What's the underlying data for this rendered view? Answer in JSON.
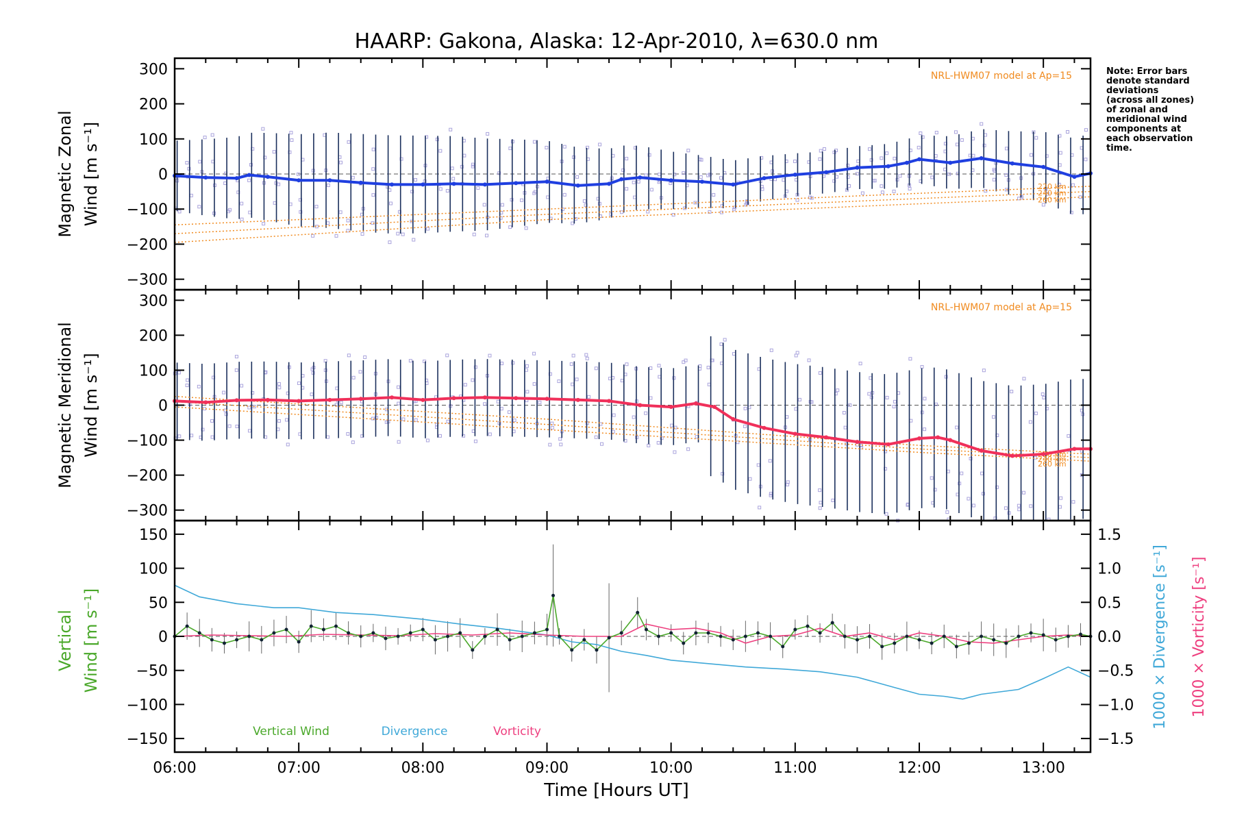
{
  "title": "HAARP: Gakona,  Alaska: 12-Apr-2010, λ=630.0 nm",
  "note": [
    "Note: Error bars",
    "denote standard",
    "deviations",
    "(across all zones)",
    "of zonal and",
    "meridional wind",
    "components at",
    "each observation",
    "time."
  ],
  "model_label": "NRL-HWM07 model at Ap=15",
  "model_altitudes": [
    "220 km",
    "240 km",
    "260 km"
  ],
  "colors": {
    "zonal": "#1f3fe0",
    "meridional": "#f0305a",
    "vertical": "#4aa82a",
    "divergence": "#3fa8d8",
    "vorticity": "#ee3f7f",
    "model": "#f08a1e",
    "scatter": "#a9a3dc",
    "errorbar": "#1a2f5c"
  },
  "chart_data": [
    {
      "type": "line",
      "panel": "zonal",
      "ylabel": [
        "Magnetic Zonal",
        "Wind [m s⁻¹]"
      ],
      "ylim": [
        -330,
        330
      ],
      "yticks": [
        "300",
        "200",
        "100",
        "0",
        "−100",
        "−200",
        "−300"
      ],
      "xlim": [
        6.0,
        13.38
      ],
      "series": [
        {
          "name": "Zonal wind",
          "x": [
            6.0,
            6.25,
            6.5,
            6.6,
            6.75,
            7.0,
            7.25,
            7.5,
            7.75,
            8.0,
            8.25,
            8.5,
            8.75,
            9.0,
            9.25,
            9.5,
            9.6,
            9.75,
            10.0,
            10.25,
            10.5,
            10.75,
            11.0,
            11.25,
            11.5,
            11.75,
            11.9,
            12.0,
            12.25,
            12.5,
            12.75,
            13.0,
            13.25,
            13.38
          ],
          "values": [
            -5,
            -10,
            -12,
            -3,
            -8,
            -18,
            -18,
            -25,
            -30,
            -30,
            -28,
            -30,
            -26,
            -22,
            -33,
            -28,
            -15,
            -10,
            -18,
            -22,
            -30,
            -12,
            -2,
            5,
            18,
            22,
            32,
            42,
            32,
            45,
            30,
            20,
            -8,
            2
          ]
        }
      ],
      "model_curves": [
        {
          "name": "220 km",
          "x": [
            6.0,
            9.0,
            12.0,
            13.38
          ],
          "values": [
            -145,
            -100,
            -55,
            -35
          ]
        },
        {
          "name": "240 km",
          "x": [
            6.0,
            9.0,
            12.0,
            13.38
          ],
          "values": [
            -170,
            -115,
            -70,
            -50
          ]
        },
        {
          "name": "260 km",
          "x": [
            6.0,
            9.0,
            12.0,
            13.38
          ],
          "values": [
            -195,
            -130,
            -85,
            -65
          ]
        }
      ]
    },
    {
      "type": "line",
      "panel": "meridional",
      "ylabel": [
        "Magnetic Meridional",
        "Wind [m s⁻¹]"
      ],
      "ylim": [
        -330,
        330
      ],
      "yticks": [
        "300",
        "200",
        "100",
        "0",
        "−100",
        "−200",
        "−300"
      ],
      "xlim": [
        6.0,
        13.38
      ],
      "series": [
        {
          "name": "Meridional wind",
          "x": [
            6.0,
            6.25,
            6.5,
            6.75,
            7.0,
            7.25,
            7.5,
            7.75,
            8.0,
            8.25,
            8.5,
            8.75,
            9.0,
            9.25,
            9.5,
            9.75,
            10.0,
            10.2,
            10.35,
            10.5,
            10.75,
            11.0,
            11.25,
            11.5,
            11.75,
            12.0,
            12.15,
            12.25,
            12.5,
            12.75,
            13.0,
            13.25,
            13.38
          ],
          "values": [
            12,
            8,
            14,
            15,
            12,
            15,
            18,
            22,
            15,
            20,
            22,
            20,
            18,
            15,
            12,
            0,
            -5,
            5,
            -5,
            -40,
            -65,
            -82,
            -92,
            -105,
            -112,
            -95,
            -92,
            -100,
            -130,
            -145,
            -140,
            -125,
            -125
          ]
        }
      ],
      "model_curves": [
        {
          "name": "220 km",
          "x": [
            6.0,
            9.0,
            12.0,
            13.38
          ],
          "values": [
            25,
            -40,
            -115,
            -140
          ]
        },
        {
          "name": "240 km",
          "x": [
            6.0,
            9.0,
            12.0,
            13.38
          ],
          "values": [
            10,
            -55,
            -125,
            -150
          ]
        },
        {
          "name": "260 km",
          "x": [
            6.0,
            9.0,
            12.0,
            13.38
          ],
          "values": [
            -5,
            -70,
            -135,
            -160
          ]
        }
      ]
    },
    {
      "type": "line",
      "panel": "vertical",
      "ylabel_left": [
        "Vertical",
        "Wind [m s⁻¹]"
      ],
      "ylabel_right_1": "1000 × Divergence [s⁻¹]",
      "ylabel_right_2": "1000 × Vorticity [s⁻¹]",
      "ylim": [
        -170,
        170
      ],
      "yticks": [
        "150",
        "100",
        "50",
        "0",
        "−50",
        "−100",
        "−150"
      ],
      "y2lim": [
        -1.7,
        1.7
      ],
      "y2ticks": [
        "1.5",
        "1.0",
        "0.5",
        "0.0",
        "−0.5",
        "−1.0",
        "−1.5"
      ],
      "xlabel": "Time [Hours UT]",
      "xticks": [
        "06:00",
        "07:00",
        "08:00",
        "09:00",
        "10:00",
        "11:00",
        "12:00",
        "13:00"
      ],
      "xlim": [
        6.0,
        13.38
      ],
      "legend": [
        "Vertical Wind",
        "Divergence",
        "Vorticity"
      ],
      "series": [
        {
          "name": "Vertical Wind",
          "x": [
            6.0,
            6.1,
            6.2,
            6.3,
            6.4,
            6.5,
            6.6,
            6.7,
            6.8,
            6.9,
            7.0,
            7.1,
            7.2,
            7.3,
            7.4,
            7.5,
            7.6,
            7.7,
            7.8,
            7.9,
            8.0,
            8.1,
            8.2,
            8.3,
            8.4,
            8.5,
            8.6,
            8.7,
            8.8,
            8.9,
            9.0,
            9.05,
            9.1,
            9.2,
            9.3,
            9.4,
            9.5,
            9.6,
            9.73,
            9.8,
            9.9,
            10.0,
            10.1,
            10.2,
            10.3,
            10.4,
            10.5,
            10.6,
            10.7,
            10.8,
            10.9,
            11.0,
            11.1,
            11.2,
            11.3,
            11.4,
            11.5,
            11.6,
            11.7,
            11.8,
            11.9,
            12.0,
            12.1,
            12.2,
            12.3,
            12.4,
            12.5,
            12.6,
            12.7,
            12.8,
            12.9,
            13.0,
            13.1,
            13.2,
            13.3,
            13.38
          ],
          "values": [
            0,
            15,
            5,
            -5,
            -10,
            -5,
            0,
            -5,
            5,
            10,
            -8,
            15,
            10,
            15,
            5,
            0,
            5,
            -3,
            0,
            5,
            10,
            -5,
            0,
            5,
            -20,
            0,
            10,
            -5,
            0,
            5,
            10,
            60,
            0,
            -20,
            -5,
            -20,
            -2,
            5,
            35,
            10,
            0,
            5,
            -10,
            5,
            5,
            0,
            -5,
            0,
            5,
            0,
            -15,
            10,
            15,
            5,
            20,
            0,
            -5,
            0,
            -15,
            -10,
            0,
            -5,
            -10,
            0,
            -15,
            -10,
            0,
            -5,
            -10,
            0,
            5,
            2,
            -5,
            0,
            3,
            0
          ]
        },
        {
          "name": "Divergence",
          "x": [
            6.0,
            6.2,
            6.5,
            6.8,
            7.0,
            7.3,
            7.6,
            8.0,
            8.3,
            8.6,
            9.0,
            9.2,
            9.4,
            9.6,
            9.8,
            10.0,
            10.3,
            10.6,
            10.9,
            11.2,
            11.5,
            11.8,
            12.0,
            12.2,
            12.35,
            12.5,
            12.8,
            13.0,
            13.2,
            13.38
          ],
          "values": [
            0.75,
            0.58,
            0.48,
            0.42,
            0.42,
            0.35,
            0.32,
            0.25,
            0.18,
            0.12,
            0.02,
            -0.08,
            -0.12,
            -0.22,
            -0.28,
            -0.35,
            -0.4,
            -0.45,
            -0.48,
            -0.52,
            -0.6,
            -0.75,
            -0.85,
            -0.88,
            -0.92,
            -0.85,
            -0.78,
            -0.62,
            -0.45,
            -0.6
          ]
        },
        {
          "name": "Vorticity",
          "x": [
            6.0,
            6.3,
            6.6,
            6.9,
            7.2,
            7.5,
            7.8,
            8.1,
            8.4,
            8.7,
            9.0,
            9.3,
            9.6,
            9.8,
            10.0,
            10.2,
            10.4,
            10.6,
            10.8,
            11.0,
            11.2,
            11.4,
            11.6,
            11.8,
            12.0,
            12.2,
            12.4,
            12.6,
            12.8,
            13.0,
            13.2,
            13.38
          ],
          "values": [
            0.0,
            0.02,
            0.01,
            0.0,
            0.03,
            0.02,
            0.01,
            0.04,
            0.02,
            0.05,
            0.02,
            0.0,
            0.0,
            0.18,
            0.1,
            0.12,
            0.05,
            -0.1,
            0.0,
            0.02,
            0.12,
            0.0,
            0.05,
            -0.05,
            0.05,
            0.0,
            -0.08,
            -0.1,
            -0.05,
            0.0,
            0.02,
            0.0
          ]
        }
      ]
    }
  ]
}
